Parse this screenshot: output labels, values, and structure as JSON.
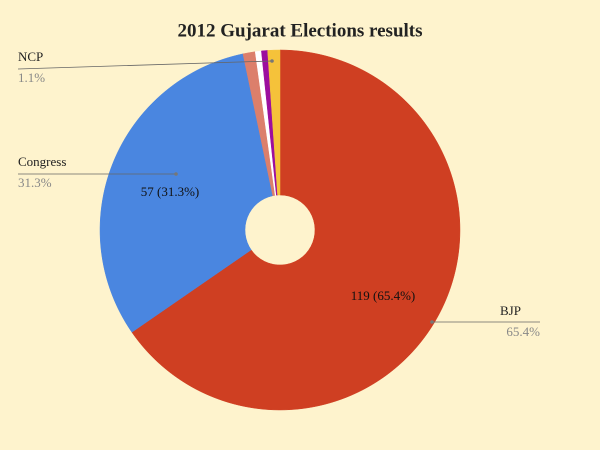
{
  "chart_data": {
    "type": "pie",
    "title": "2012 Gujarat Elections results",
    "categories": [
      "BJP",
      "Congress",
      null,
      null,
      null,
      "NCP"
    ],
    "values": [
      119,
      57,
      2,
      1,
      1,
      2
    ],
    "value_labels": [
      "119 (65.4%)",
      "57 (31.3%)",
      null,
      null,
      null,
      null
    ],
    "percent_labels": [
      "65.4%",
      "31.3%",
      null,
      null,
      null,
      "1.1%"
    ],
    "colors": [
      "#cf3f22",
      "#4a86e0",
      "#dc7f6b",
      "#ffffff",
      "#9c0e9e",
      "#f5c23a"
    ],
    "donut": true
  }
}
